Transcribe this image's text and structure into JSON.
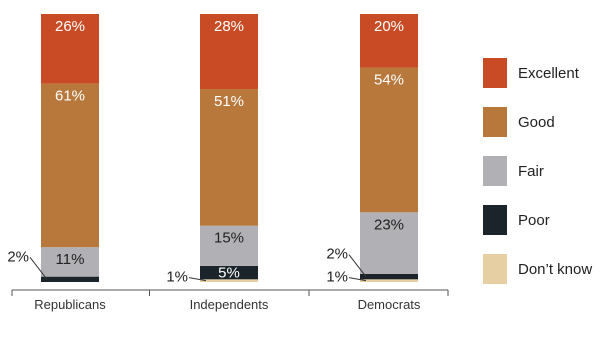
{
  "chart_data": {
    "type": "bar",
    "stacked": true,
    "orientation": "vertical",
    "categories": [
      "Republicans",
      "Independents",
      "Democrats"
    ],
    "series": [
      {
        "name": "Don’t know",
        "color": "#e7cfa4",
        "values": [
          0,
          1,
          1
        ],
        "labels": [
          "",
          "1%",
          "1%"
        ]
      },
      {
        "name": "Poor",
        "color": "#1b232b",
        "values": [
          2,
          5,
          2
        ],
        "labels": [
          "2%",
          "5%",
          "2%"
        ]
      },
      {
        "name": "Fair",
        "color": "#b1b1b5",
        "values": [
          11,
          15,
          23
        ],
        "labels": [
          "11%",
          "15%",
          "23%"
        ]
      },
      {
        "name": "Good",
        "color": "#b8783b",
        "values": [
          61,
          51,
          54
        ],
        "labels": [
          "61%",
          "51%",
          "54%"
        ]
      },
      {
        "name": "Excellent",
        "color": "#c84b26",
        "values": [
          26,
          28,
          20
        ],
        "labels": [
          "26%",
          "28%",
          "20%"
        ]
      }
    ],
    "title": "",
    "xlabel": "",
    "ylabel": "",
    "ylim": [
      0,
      100
    ],
    "grid": false,
    "legend": "right",
    "axis_color": "#555555"
  }
}
